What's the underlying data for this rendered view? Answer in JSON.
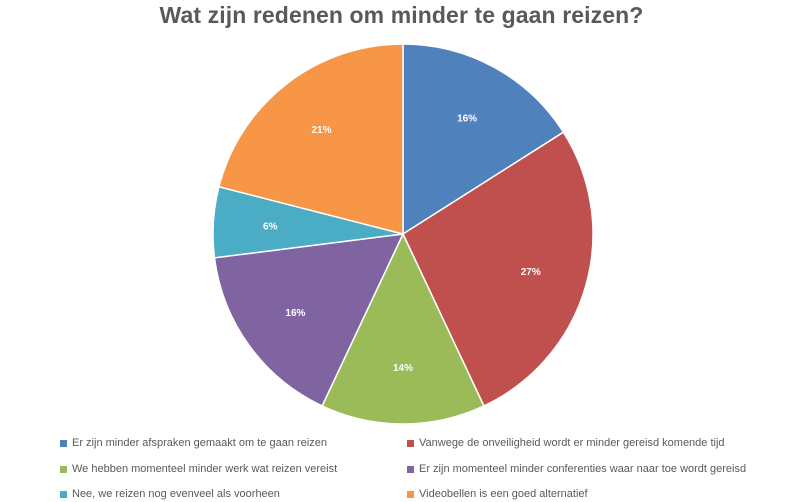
{
  "chart_data": {
    "type": "pie",
    "title": "Wat zijn redenen om minder te gaan reizen?",
    "legend_position": "bottom",
    "slices": [
      {
        "label": "Er zijn minder afspraken gemaakt om te gaan reizen",
        "value": 16,
        "display": "16%",
        "color": "#4F81BD"
      },
      {
        "label": "Vanwege de onveiligheid wordt er minder gereisd komende tijd",
        "value": 27,
        "display": "27%",
        "color": "#C0504D"
      },
      {
        "label": "We hebben momenteel minder werk wat reizen vereist",
        "value": 14,
        "display": "14%",
        "color": "#9BBB59"
      },
      {
        "label": "Er zijn momenteel minder conferenties waar naar toe wordt gereisd",
        "value": 16,
        "display": "16%",
        "color": "#8064A2"
      },
      {
        "label": "Nee, we reizen nog evenveel als voorheen",
        "value": 6,
        "display": "6%",
        "color": "#4BACC6"
      },
      {
        "label": "Videobellen is een goed alternatief",
        "value": 21,
        "display": "21%",
        "color": "#F79646"
      }
    ]
  }
}
